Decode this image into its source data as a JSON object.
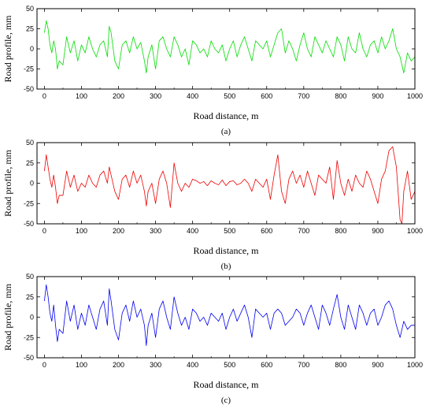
{
  "chart_data": [
    {
      "type": "line",
      "panel_label": "(a)",
      "xlabel": "Road distance, m",
      "ylabel": "Road profile, mm",
      "xlim": [
        -20,
        1000
      ],
      "ylim": [
        -50,
        50
      ],
      "xticks": [
        0,
        100,
        200,
        300,
        400,
        500,
        600,
        700,
        800,
        900,
        1000
      ],
      "yticks": [
        -50,
        -25,
        0,
        25,
        50
      ],
      "grid": false,
      "series": [
        {
          "color": "#00dd00",
          "x": [
            0,
            5,
            10,
            15,
            20,
            25,
            30,
            35,
            40,
            50,
            60,
            70,
            80,
            90,
            100,
            110,
            120,
            130,
            140,
            150,
            160,
            170,
            175,
            180,
            190,
            200,
            210,
            220,
            230,
            240,
            250,
            260,
            270,
            275,
            280,
            290,
            300,
            310,
            320,
            330,
            340,
            350,
            360,
            370,
            380,
            390,
            400,
            410,
            420,
            430,
            440,
            450,
            460,
            470,
            480,
            490,
            500,
            510,
            520,
            530,
            540,
            550,
            560,
            570,
            580,
            590,
            600,
            610,
            620,
            630,
            640,
            650,
            660,
            670,
            680,
            690,
            700,
            710,
            720,
            730,
            740,
            750,
            760,
            770,
            780,
            790,
            800,
            810,
            820,
            830,
            840,
            850,
            860,
            870,
            880,
            890,
            900,
            910,
            920,
            930,
            940,
            950,
            960,
            970,
            980,
            990,
            1000
          ],
          "y": [
            20,
            35,
            25,
            5,
            -5,
            10,
            0,
            -25,
            -15,
            -20,
            15,
            -5,
            10,
            -15,
            5,
            -5,
            15,
            0,
            -10,
            5,
            10,
            -10,
            28,
            20,
            -15,
            -25,
            5,
            10,
            -5,
            15,
            0,
            8,
            -15,
            -30,
            -10,
            5,
            -25,
            10,
            15,
            0,
            -10,
            15,
            5,
            -10,
            0,
            -20,
            10,
            5,
            -5,
            0,
            -10,
            10,
            0,
            -5,
            5,
            -15,
            0,
            10,
            -10,
            5,
            15,
            0,
            -15,
            10,
            5,
            0,
            10,
            -10,
            5,
            20,
            25,
            -5,
            10,
            0,
            -15,
            5,
            20,
            0,
            -10,
            15,
            5,
            -5,
            10,
            0,
            -10,
            15,
            5,
            -15,
            15,
            0,
            -5,
            20,
            0,
            -10,
            5,
            10,
            -5,
            15,
            0,
            10,
            25,
            0,
            -10,
            -30,
            -5,
            -15,
            -10
          ]
        }
      ]
    },
    {
      "type": "line",
      "panel_label": "(b)",
      "xlabel": "Road distance, m",
      "ylabel": "Road profile, mm",
      "xlim": [
        -20,
        1000
      ],
      "ylim": [
        -50,
        50
      ],
      "xticks": [
        0,
        100,
        200,
        300,
        400,
        500,
        600,
        700,
        800,
        900,
        1000
      ],
      "yticks": [
        -50,
        -25,
        0,
        25,
        50
      ],
      "grid": false,
      "series": [
        {
          "color": "#ee0000",
          "x": [
            0,
            5,
            10,
            15,
            20,
            25,
            30,
            35,
            40,
            50,
            60,
            70,
            80,
            90,
            100,
            110,
            120,
            130,
            140,
            150,
            160,
            170,
            175,
            180,
            190,
            200,
            210,
            220,
            230,
            240,
            250,
            260,
            270,
            275,
            280,
            290,
            300,
            310,
            320,
            330,
            340,
            350,
            360,
            370,
            380,
            390,
            400,
            410,
            420,
            430,
            440,
            450,
            460,
            470,
            480,
            490,
            500,
            510,
            520,
            530,
            540,
            550,
            560,
            570,
            580,
            590,
            600,
            610,
            620,
            630,
            640,
            650,
            660,
            670,
            680,
            690,
            700,
            710,
            720,
            730,
            740,
            750,
            760,
            770,
            780,
            790,
            800,
            810,
            820,
            830,
            840,
            850,
            860,
            870,
            880,
            890,
            900,
            910,
            920,
            930,
            940,
            950,
            960,
            965,
            970,
            980,
            990,
            1000
          ],
          "y": [
            15,
            35,
            20,
            5,
            -5,
            10,
            -5,
            -25,
            -15,
            -15,
            15,
            -5,
            10,
            -10,
            0,
            -5,
            10,
            0,
            -5,
            10,
            15,
            0,
            20,
            10,
            -10,
            -20,
            5,
            10,
            -5,
            15,
            0,
            10,
            -10,
            -28,
            -10,
            0,
            -25,
            5,
            15,
            0,
            -30,
            25,
            0,
            -10,
            0,
            -5,
            5,
            3,
            0,
            2,
            -3,
            3,
            0,
            -2,
            4,
            -3,
            2,
            3,
            -2,
            0,
            5,
            0,
            -10,
            5,
            0,
            -5,
            5,
            -20,
            10,
            35,
            -10,
            -25,
            5,
            15,
            0,
            10,
            -5,
            15,
            0,
            -15,
            10,
            5,
            0,
            20,
            -20,
            28,
            0,
            -15,
            5,
            -10,
            10,
            0,
            -5,
            15,
            5,
            -10,
            -25,
            5,
            15,
            40,
            45,
            20,
            -45,
            -50,
            -10,
            15,
            -20,
            -10
          ]
        }
      ]
    },
    {
      "type": "line",
      "panel_label": "(c)",
      "xlabel": "Road distance, m",
      "ylabel": "Road profile, mm",
      "xlim": [
        -20,
        1000
      ],
      "ylim": [
        -50,
        50
      ],
      "xticks": [
        0,
        100,
        200,
        300,
        400,
        500,
        600,
        700,
        800,
        900,
        1000
      ],
      "yticks": [
        -50,
        -25,
        0,
        25,
        50
      ],
      "grid": false,
      "series": [
        {
          "color": "#0000ee",
          "x": [
            0,
            5,
            10,
            15,
            20,
            25,
            30,
            35,
            40,
            50,
            60,
            70,
            80,
            90,
            100,
            110,
            120,
            130,
            140,
            150,
            160,
            170,
            175,
            180,
            190,
            200,
            210,
            220,
            230,
            240,
            250,
            260,
            270,
            275,
            280,
            290,
            300,
            310,
            320,
            330,
            340,
            350,
            360,
            370,
            380,
            390,
            400,
            410,
            420,
            430,
            440,
            450,
            460,
            470,
            480,
            490,
            500,
            510,
            520,
            530,
            540,
            550,
            560,
            570,
            580,
            590,
            600,
            610,
            620,
            630,
            640,
            650,
            660,
            670,
            680,
            690,
            700,
            710,
            720,
            730,
            740,
            750,
            760,
            770,
            780,
            790,
            800,
            810,
            820,
            830,
            840,
            850,
            860,
            870,
            880,
            890,
            900,
            910,
            920,
            930,
            940,
            950,
            960,
            970,
            980,
            990,
            1000
          ],
          "y": [
            20,
            40,
            25,
            5,
            -5,
            15,
            -10,
            -30,
            -15,
            -20,
            20,
            -5,
            15,
            -15,
            5,
            -10,
            15,
            0,
            -15,
            10,
            20,
            -10,
            35,
            20,
            -15,
            -28,
            5,
            15,
            -5,
            20,
            0,
            10,
            -10,
            -35,
            -10,
            5,
            -25,
            10,
            20,
            0,
            -15,
            25,
            5,
            -10,
            0,
            -15,
            10,
            5,
            -5,
            0,
            -10,
            5,
            0,
            -5,
            5,
            -15,
            0,
            10,
            -5,
            5,
            15,
            0,
            -25,
            10,
            5,
            0,
            5,
            -15,
            5,
            10,
            5,
            -10,
            -5,
            0,
            10,
            5,
            -10,
            5,
            15,
            0,
            -15,
            15,
            5,
            -10,
            10,
            28,
            0,
            -15,
            15,
            0,
            -15,
            15,
            5,
            -10,
            5,
            10,
            -10,
            0,
            15,
            20,
            10,
            -10,
            -25,
            -5,
            -15,
            -10,
            -10
          ]
        }
      ]
    }
  ]
}
